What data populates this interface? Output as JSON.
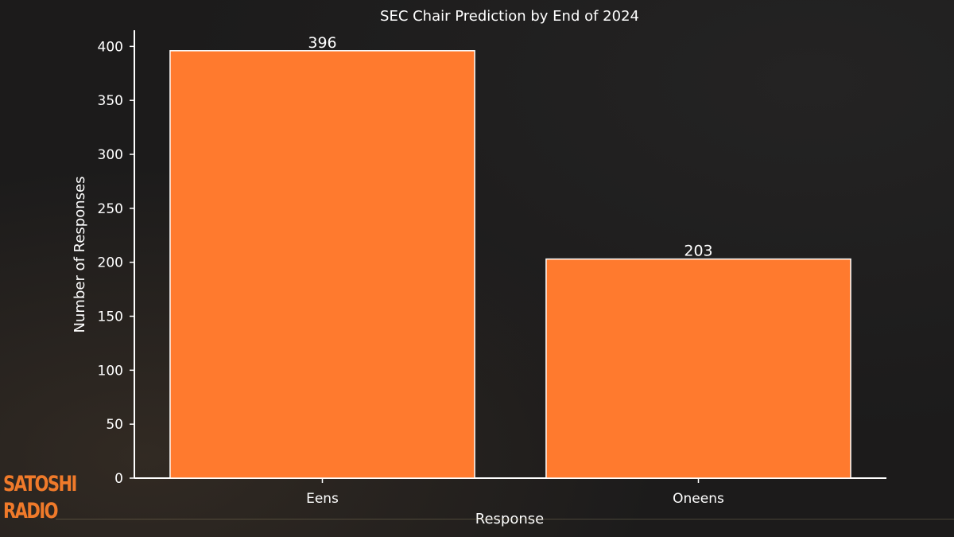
{
  "brand": {
    "line1": "SATOSHI",
    "line2": "RADIO",
    "color": "#f07a2a"
  },
  "chart_data": {
    "type": "bar",
    "title": "SEC Chair Prediction by End of 2024",
    "xlabel": "Response",
    "ylabel": "Number of Responses",
    "categories": [
      "Eens",
      "Oneens"
    ],
    "values": [
      396,
      203
    ],
    "data_labels": [
      "396",
      "203"
    ],
    "ylim": [
      0,
      415
    ],
    "yticks": [
      0,
      50,
      100,
      150,
      200,
      250,
      300,
      350,
      400
    ],
    "grid": false,
    "bar_color": "#ff7a2e",
    "bar_edge_color": "#ffffff",
    "axis_color": "#ffffff",
    "text_color": "#ffffff"
  }
}
